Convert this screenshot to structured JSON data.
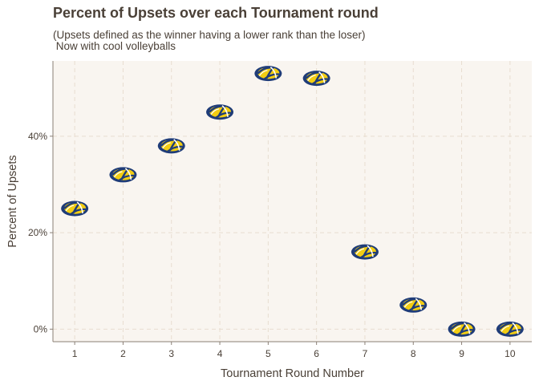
{
  "chart_data": {
    "type": "scatter",
    "title": "Percent of Upsets over each Tournament round",
    "subtitle_line1": "(Upsets defined as the winner having a lower rank than the loser)",
    "subtitle_line2": " Now with cool volleyballs",
    "xlabel": "Tournament Round Number",
    "ylabel": "Percent of Upsets",
    "x": [
      1,
      2,
      3,
      4,
      5,
      6,
      7,
      8,
      9,
      10
    ],
    "y": [
      25,
      32,
      38,
      45,
      53,
      52,
      16,
      5,
      0,
      0
    ],
    "xticks": [
      "1",
      "2",
      "3",
      "4",
      "5",
      "6",
      "7",
      "8",
      "9",
      "10"
    ],
    "yticks": [
      0,
      20,
      40
    ],
    "ytick_labels": [
      "0%",
      "20%",
      "40%"
    ],
    "xlim": [
      0.55,
      10.45
    ],
    "ylim": [
      -2.6,
      55.6
    ],
    "grid": true,
    "marker": "volleyball-icon",
    "colors": {
      "panel_background": "#f9f5f0",
      "grid": "#e8ddd0",
      "text": "#4a4037",
      "ball_navy": "#1f3c78",
      "ball_yellow": "#f2cd13"
    }
  }
}
